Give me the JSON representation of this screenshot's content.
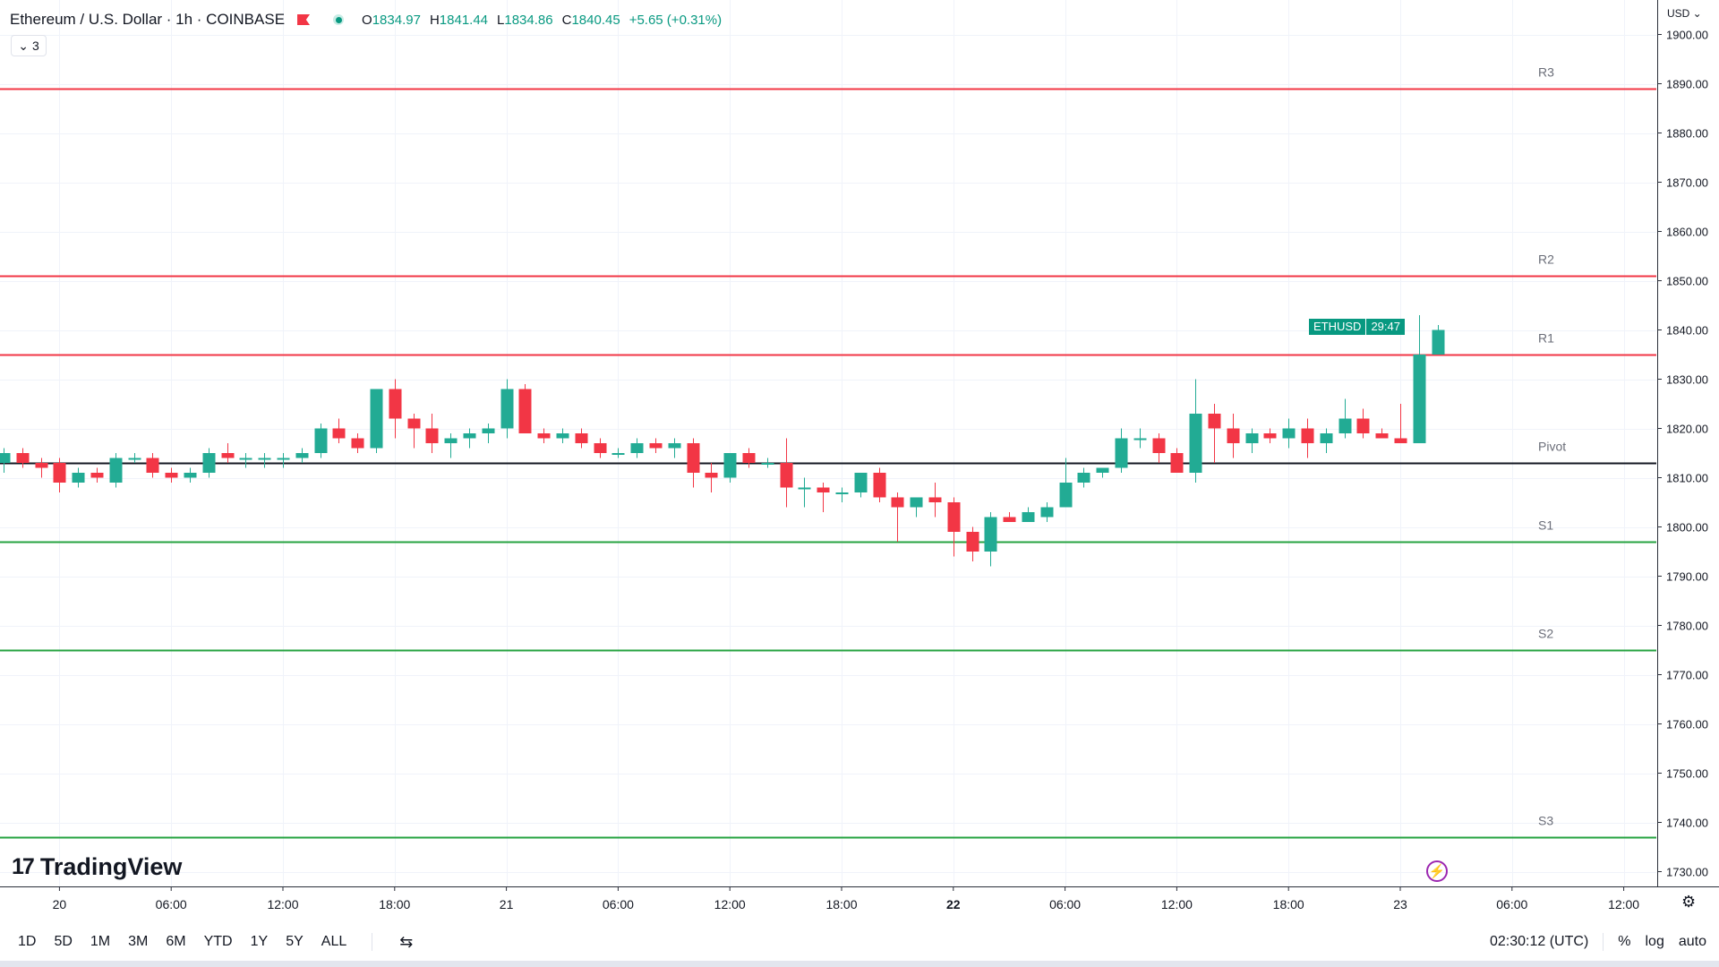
{
  "header": {
    "symbol": "Ethereum / U.S. Dollar · 1h · COINBASE",
    "open_label": "O",
    "open": "1834.97",
    "high_label": "H",
    "high": "1841.44",
    "low_label": "L",
    "low": "1834.86",
    "close_label": "C",
    "close": "1840.45",
    "change": "+5.65 (+0.31%)",
    "collapse_count": "3"
  },
  "currency": "USD",
  "price_tag": {
    "symbol": "ETHUSD",
    "countdown": "29:47"
  },
  "logo_text": "TradingView",
  "logo_mark": "17",
  "bottom": {
    "ranges": [
      "1D",
      "5D",
      "1M",
      "3M",
      "6M",
      "YTD",
      "1Y",
      "5Y",
      "ALL"
    ],
    "time": "02:30:12 (UTC)",
    "percent": "%",
    "log": "log",
    "auto": "auto"
  },
  "colors": {
    "up": "#22ab94",
    "down": "#f23645",
    "resistance": "#f23645",
    "support": "#26a340",
    "pivot": "#131722"
  },
  "chart_data": {
    "type": "candlestick",
    "title": "Ethereum / U.S. Dollar · 1h · COINBASE",
    "ylim": [
      1727,
      1907
    ],
    "y_ticks": [
      1730,
      1740,
      1750,
      1760,
      1770,
      1780,
      1790,
      1800,
      1810,
      1820,
      1830,
      1840,
      1850,
      1860,
      1870,
      1880,
      1890,
      1900
    ],
    "x_ticks": [
      {
        "i": 3,
        "label": "20",
        "bold": false
      },
      {
        "i": 9,
        "label": "06:00",
        "bold": false
      },
      {
        "i": 15,
        "label": "12:00",
        "bold": false
      },
      {
        "i": 21,
        "label": "18:00",
        "bold": false
      },
      {
        "i": 27,
        "label": "21",
        "bold": false
      },
      {
        "i": 33,
        "label": "06:00",
        "bold": false
      },
      {
        "i": 39,
        "label": "12:00",
        "bold": false
      },
      {
        "i": 45,
        "label": "18:00",
        "bold": false
      },
      {
        "i": 51,
        "label": "22",
        "bold": true
      },
      {
        "i": 57,
        "label": "06:00",
        "bold": false
      },
      {
        "i": 63,
        "label": "12:00",
        "bold": false
      },
      {
        "i": 69,
        "label": "18:00",
        "bold": false
      },
      {
        "i": 75,
        "label": "23",
        "bold": false
      },
      {
        "i": 81,
        "label": "06:00",
        "bold": false
      },
      {
        "i": 87,
        "label": "12:00",
        "bold": false
      }
    ],
    "levels": [
      {
        "label": "R3",
        "value": 1889.0,
        "kind": "resistance"
      },
      {
        "label": "R2",
        "value": 1851.0,
        "kind": "resistance"
      },
      {
        "label": "R1",
        "value": 1835.0,
        "kind": "resistance"
      },
      {
        "label": "Pivot",
        "value": 1813.0,
        "kind": "pivot"
      },
      {
        "label": "S1",
        "value": 1797.0,
        "kind": "support"
      },
      {
        "label": "S2",
        "value": 1775.0,
        "kind": "support"
      },
      {
        "label": "S3",
        "value": 1737.0,
        "kind": "support"
      }
    ],
    "candles": [
      [
        1813,
        1816,
        1811,
        1815
      ],
      [
        1815,
        1816,
        1812,
        1813
      ],
      [
        1813,
        1814,
        1810,
        1812
      ],
      [
        1813,
        1814,
        1807,
        1809
      ],
      [
        1809,
        1812,
        1808,
        1811
      ],
      [
        1811,
        1812,
        1809,
        1810
      ],
      [
        1809,
        1815,
        1808,
        1814
      ],
      [
        1814,
        1815,
        1813,
        1814
      ],
      [
        1814,
        1815,
        1810,
        1811
      ],
      [
        1811,
        1812,
        1809,
        1810
      ],
      [
        1810,
        1812,
        1809,
        1811
      ],
      [
        1811,
        1816,
        1810,
        1815
      ],
      [
        1815,
        1817,
        1813,
        1814
      ],
      [
        1814,
        1815,
        1812,
        1814
      ],
      [
        1814,
        1815,
        1812,
        1814
      ],
      [
        1814,
        1815,
        1812,
        1814
      ],
      [
        1814,
        1816,
        1813,
        1815
      ],
      [
        1815,
        1821,
        1814,
        1820
      ],
      [
        1820,
        1822,
        1817,
        1818
      ],
      [
        1818,
        1819,
        1815,
        1816
      ],
      [
        1816,
        1828,
        1815,
        1828
      ],
      [
        1828,
        1830,
        1818,
        1822
      ],
      [
        1822,
        1823,
        1816,
        1820
      ],
      [
        1820,
        1823,
        1815,
        1817
      ],
      [
        1817,
        1819,
        1814,
        1818
      ],
      [
        1818,
        1820,
        1816,
        1819
      ],
      [
        1819,
        1821,
        1817,
        1820
      ],
      [
        1820,
        1830,
        1818,
        1828
      ],
      [
        1828,
        1829,
        1819,
        1819
      ],
      [
        1819,
        1820,
        1817,
        1818
      ],
      [
        1818,
        1820,
        1817,
        1819
      ],
      [
        1819,
        1820,
        1816,
        1817
      ],
      [
        1817,
        1818,
        1814,
        1815
      ],
      [
        1815,
        1816,
        1814,
        1815
      ],
      [
        1815,
        1818,
        1814,
        1817
      ],
      [
        1817,
        1818,
        1815,
        1816
      ],
      [
        1816,
        1818,
        1814,
        1817
      ],
      [
        1817,
        1818,
        1808,
        1811
      ],
      [
        1811,
        1813,
        1807,
        1810
      ],
      [
        1810,
        1815,
        1809,
        1815
      ],
      [
        1815,
        1816,
        1812,
        1813
      ],
      [
        1813,
        1814,
        1812,
        1813
      ],
      [
        1813,
        1818,
        1804,
        1808
      ],
      [
        1808,
        1810,
        1804,
        1808
      ],
      [
        1808,
        1809,
        1803,
        1807
      ],
      [
        1807,
        1808,
        1805,
        1807
      ],
      [
        1807,
        1811,
        1806,
        1811
      ],
      [
        1811,
        1812,
        1805,
        1806
      ],
      [
        1806,
        1807,
        1797,
        1804
      ],
      [
        1804,
        1806,
        1802,
        1806
      ],
      [
        1806,
        1809,
        1802,
        1805
      ],
      [
        1805,
        1806,
        1794,
        1799
      ],
      [
        1799,
        1800,
        1793,
        1795
      ],
      [
        1795,
        1803,
        1792,
        1802
      ],
      [
        1802,
        1803,
        1801,
        1801
      ],
      [
        1801,
        1804,
        1801,
        1803
      ],
      [
        1802,
        1805,
        1801,
        1804
      ],
      [
        1804,
        1814,
        1804,
        1809
      ],
      [
        1809,
        1812,
        1808,
        1811
      ],
      [
        1811,
        1812,
        1810,
        1812
      ],
      [
        1812,
        1820,
        1811,
        1818
      ],
      [
        1818,
        1820,
        1816,
        1818
      ],
      [
        1818,
        1819,
        1813,
        1815
      ],
      [
        1815,
        1816,
        1811,
        1811
      ],
      [
        1811,
        1830,
        1809,
        1823
      ],
      [
        1823,
        1825,
        1813,
        1820
      ],
      [
        1820,
        1823,
        1814,
        1817
      ],
      [
        1817,
        1820,
        1815,
        1819
      ],
      [
        1819,
        1820,
        1817,
        1818
      ],
      [
        1818,
        1822,
        1816,
        1820
      ],
      [
        1820,
        1822,
        1814,
        1817
      ],
      [
        1817,
        1820,
        1815,
        1819
      ],
      [
        1819,
        1826,
        1818,
        1822
      ],
      [
        1822,
        1824,
        1818,
        1819
      ],
      [
        1819,
        1820,
        1818,
        1818
      ],
      [
        1818,
        1825,
        1817,
        1817
      ],
      [
        1817,
        1843,
        1817,
        1835
      ],
      [
        1835,
        1841,
        1835,
        1840
      ]
    ]
  }
}
